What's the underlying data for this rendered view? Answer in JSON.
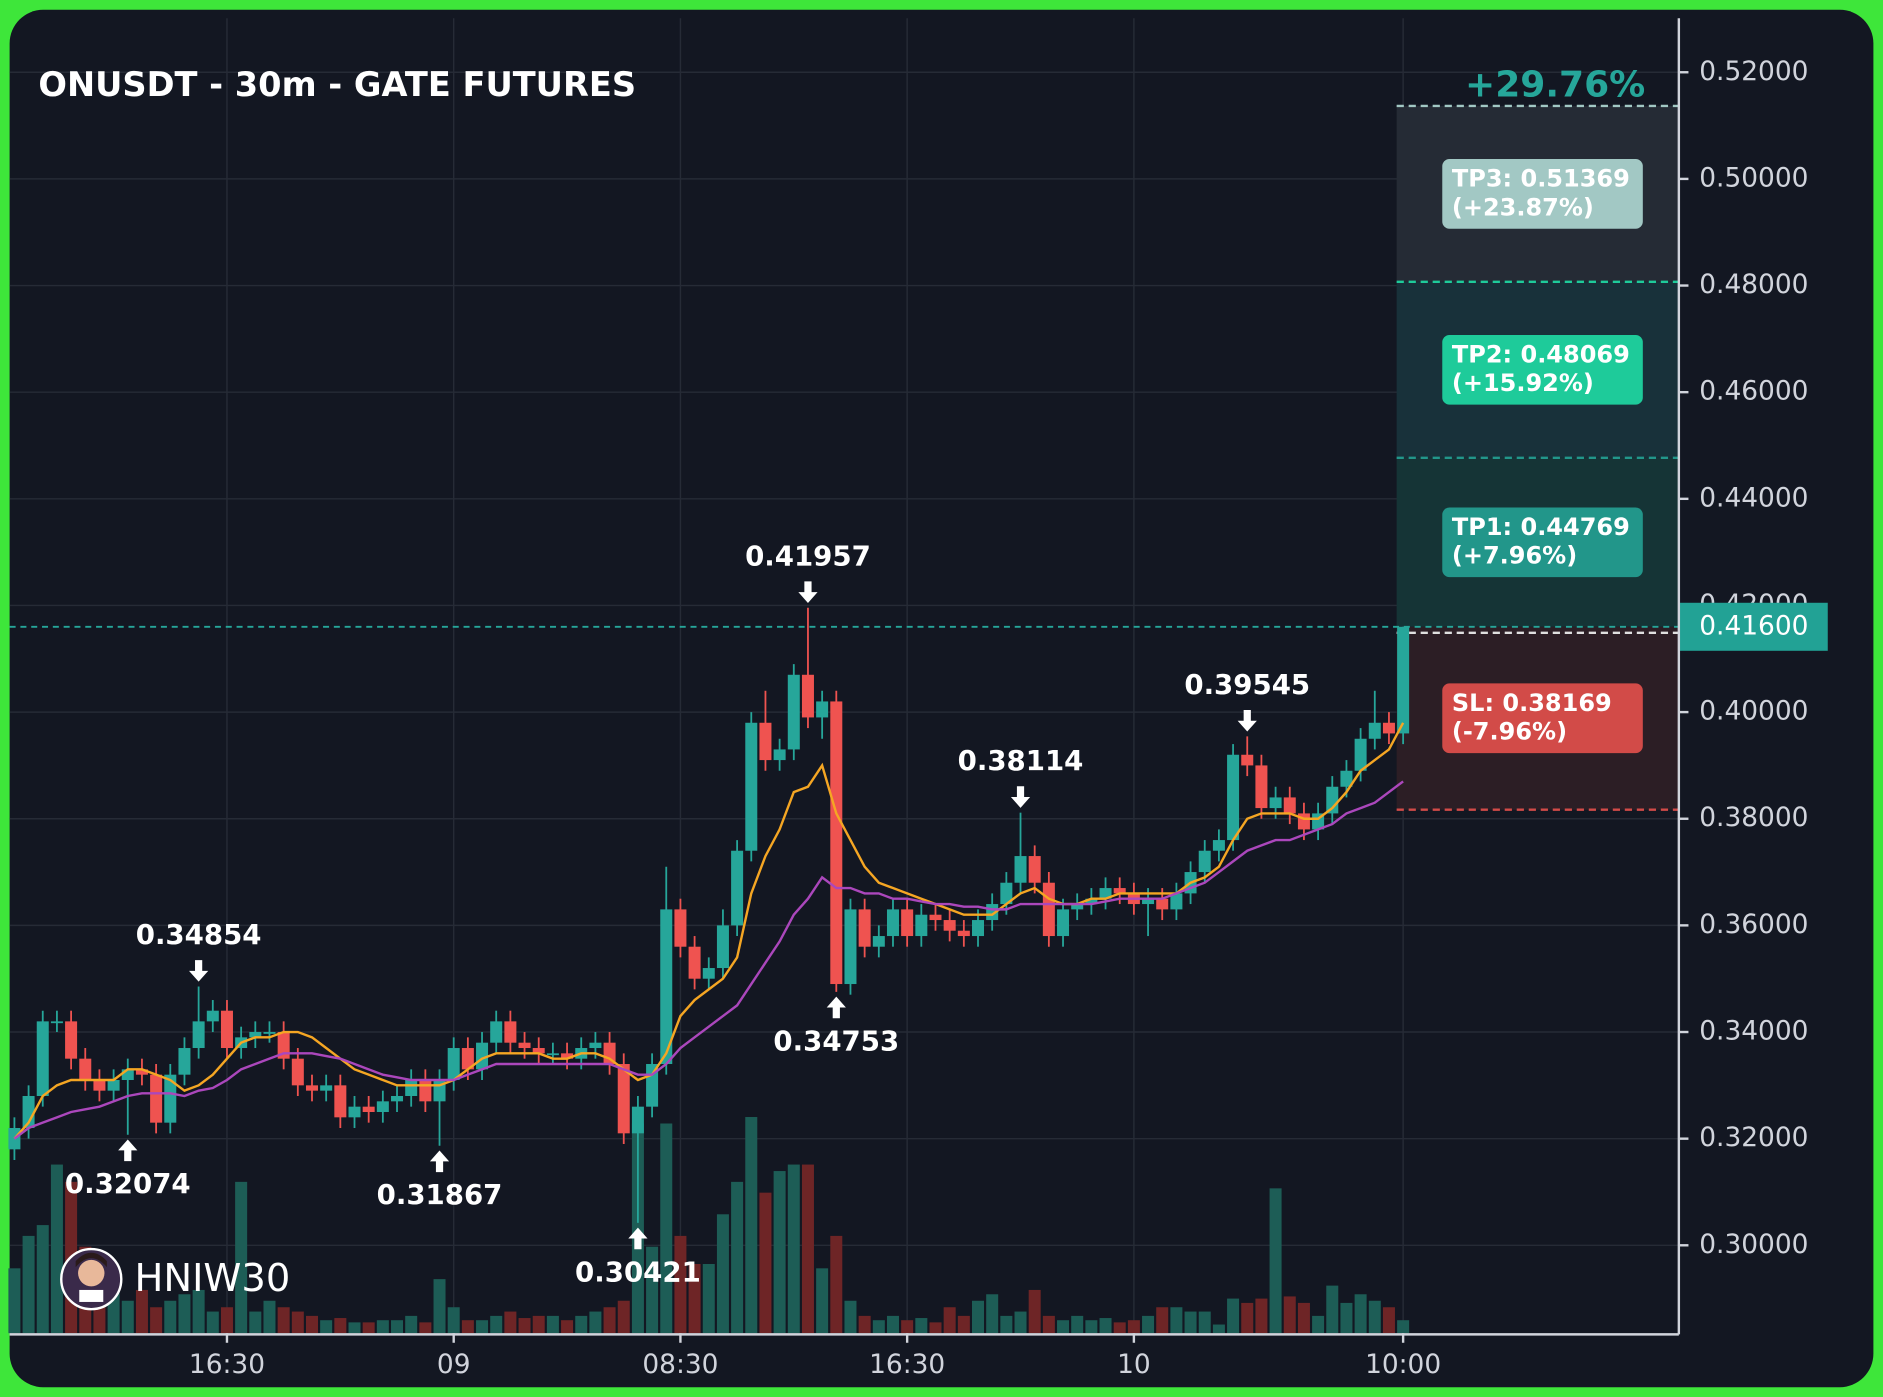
{
  "chart_data": {
    "type": "candlestick",
    "title": "ONUSDT - 30m - GATE FUTURES",
    "watermark": "HNIW30",
    "categories": [
      null,
      null,
      null,
      null,
      null,
      null,
      null,
      null,
      null,
      null,
      null,
      null,
      null,
      null,
      null,
      "16:30",
      null,
      null,
      null,
      null,
      null,
      null,
      null,
      null,
      null,
      null,
      null,
      null,
      null,
      null,
      null,
      "09",
      null,
      null,
      null,
      null,
      null,
      null,
      null,
      null,
      null,
      null,
      null,
      null,
      null,
      null,
      null,
      "08:30",
      null,
      null,
      null,
      null,
      null,
      null,
      null,
      null,
      null,
      null,
      null,
      null,
      null,
      null,
      null,
      "16:30",
      null,
      null,
      null,
      null,
      null,
      null,
      null,
      null,
      null,
      null,
      null,
      null,
      null,
      null,
      null,
      "10",
      null,
      null,
      null,
      null,
      null,
      null,
      null,
      null,
      null,
      null,
      null,
      null,
      null,
      null,
      null,
      null,
      null,
      null,
      "10:00"
    ],
    "ohlc": [
      [
        0.318,
        0.324,
        0.316,
        0.322
      ],
      [
        0.322,
        0.33,
        0.32,
        0.328
      ],
      [
        0.328,
        0.344,
        0.326,
        0.342
      ],
      [
        0.342,
        0.344,
        0.34,
        0.342
      ],
      [
        0.342,
        0.344,
        0.333,
        0.335
      ],
      [
        0.335,
        0.337,
        0.329,
        0.331
      ],
      [
        0.331,
        0.333,
        0.327,
        0.329
      ],
      [
        0.329,
        0.333,
        0.327,
        0.331
      ],
      [
        0.331,
        0.335,
        0.32074,
        0.333
      ],
      [
        0.333,
        0.335,
        0.33,
        0.332
      ],
      [
        0.332,
        0.334,
        0.321,
        0.323
      ],
      [
        0.323,
        0.334,
        0.321,
        0.332
      ],
      [
        0.332,
        0.339,
        0.33,
        0.337
      ],
      [
        0.337,
        0.34854,
        0.335,
        0.342
      ],
      [
        0.342,
        0.346,
        0.34,
        0.344
      ],
      [
        0.344,
        0.346,
        0.335,
        0.337
      ],
      [
        0.337,
        0.341,
        0.335,
        0.339
      ],
      [
        0.339,
        0.342,
        0.337,
        0.34
      ],
      [
        0.34,
        0.342,
        0.338,
        0.34
      ],
      [
        0.34,
        0.342,
        0.333,
        0.335
      ],
      [
        0.335,
        0.337,
        0.328,
        0.33
      ],
      [
        0.33,
        0.332,
        0.327,
        0.329
      ],
      [
        0.329,
        0.332,
        0.327,
        0.33
      ],
      [
        0.33,
        0.332,
        0.322,
        0.324
      ],
      [
        0.324,
        0.328,
        0.322,
        0.326
      ],
      [
        0.326,
        0.328,
        0.323,
        0.325
      ],
      [
        0.325,
        0.329,
        0.323,
        0.327
      ],
      [
        0.327,
        0.33,
        0.325,
        0.328
      ],
      [
        0.328,
        0.333,
        0.326,
        0.331
      ],
      [
        0.331,
        0.333,
        0.325,
        0.327
      ],
      [
        0.327,
        0.333,
        0.31867,
        0.331
      ],
      [
        0.331,
        0.339,
        0.329,
        0.337
      ],
      [
        0.337,
        0.339,
        0.331,
        0.333
      ],
      [
        0.333,
        0.34,
        0.331,
        0.338
      ],
      [
        0.338,
        0.344,
        0.336,
        0.342
      ],
      [
        0.342,
        0.344,
        0.336,
        0.338
      ],
      [
        0.338,
        0.34,
        0.335,
        0.337
      ],
      [
        0.337,
        0.339,
        0.334,
        0.336
      ],
      [
        0.336,
        0.338,
        0.334,
        0.336
      ],
      [
        0.336,
        0.338,
        0.333,
        0.335
      ],
      [
        0.335,
        0.339,
        0.333,
        0.337
      ],
      [
        0.337,
        0.34,
        0.335,
        0.338
      ],
      [
        0.338,
        0.34,
        0.332,
        0.334
      ],
      [
        0.334,
        0.336,
        0.319,
        0.321
      ],
      [
        0.321,
        0.328,
        0.30421,
        0.326
      ],
      [
        0.326,
        0.336,
        0.324,
        0.334
      ],
      [
        0.334,
        0.371,
        0.332,
        0.363
      ],
      [
        0.363,
        0.365,
        0.354,
        0.356
      ],
      [
        0.356,
        0.358,
        0.348,
        0.35
      ],
      [
        0.35,
        0.354,
        0.348,
        0.352
      ],
      [
        0.352,
        0.363,
        0.35,
        0.36
      ],
      [
        0.36,
        0.376,
        0.358,
        0.374
      ],
      [
        0.374,
        0.4,
        0.372,
        0.398
      ],
      [
        0.398,
        0.404,
        0.389,
        0.391
      ],
      [
        0.391,
        0.395,
        0.389,
        0.393
      ],
      [
        0.393,
        0.409,
        0.391,
        0.407
      ],
      [
        0.407,
        0.41957,
        0.397,
        0.399
      ],
      [
        0.399,
        0.404,
        0.395,
        0.402
      ],
      [
        0.402,
        0.404,
        0.34753,
        0.349
      ],
      [
        0.349,
        0.365,
        0.347,
        0.363
      ],
      [
        0.363,
        0.365,
        0.354,
        0.356
      ],
      [
        0.356,
        0.36,
        0.354,
        0.358
      ],
      [
        0.358,
        0.365,
        0.356,
        0.363
      ],
      [
        0.363,
        0.365,
        0.356,
        0.358
      ],
      [
        0.358,
        0.364,
        0.356,
        0.362
      ],
      [
        0.362,
        0.364,
        0.359,
        0.361
      ],
      [
        0.361,
        0.363,
        0.357,
        0.359
      ],
      [
        0.359,
        0.361,
        0.356,
        0.358
      ],
      [
        0.358,
        0.363,
        0.356,
        0.361
      ],
      [
        0.361,
        0.366,
        0.359,
        0.364
      ],
      [
        0.364,
        0.37,
        0.362,
        0.368
      ],
      [
        0.368,
        0.38114,
        0.366,
        0.373
      ],
      [
        0.373,
        0.375,
        0.366,
        0.368
      ],
      [
        0.368,
        0.37,
        0.356,
        0.358
      ],
      [
        0.358,
        0.365,
        0.356,
        0.363
      ],
      [
        0.363,
        0.366,
        0.361,
        0.364
      ],
      [
        0.364,
        0.367,
        0.362,
        0.365
      ],
      [
        0.365,
        0.369,
        0.363,
        0.367
      ],
      [
        0.367,
        0.369,
        0.364,
        0.366
      ],
      [
        0.366,
        0.368,
        0.362,
        0.364
      ],
      [
        0.364,
        0.367,
        0.358,
        0.365
      ],
      [
        0.365,
        0.367,
        0.361,
        0.363
      ],
      [
        0.363,
        0.368,
        0.361,
        0.366
      ],
      [
        0.366,
        0.372,
        0.364,
        0.37
      ],
      [
        0.37,
        0.376,
        0.368,
        0.374
      ],
      [
        0.374,
        0.378,
        0.372,
        0.376
      ],
      [
        0.376,
        0.394,
        0.374,
        0.392
      ],
      [
        0.392,
        0.39545,
        0.388,
        0.39
      ],
      [
        0.39,
        0.392,
        0.38,
        0.382
      ],
      [
        0.382,
        0.386,
        0.38,
        0.384
      ],
      [
        0.384,
        0.386,
        0.379,
        0.381
      ],
      [
        0.381,
        0.383,
        0.376,
        0.378
      ],
      [
        0.378,
        0.383,
        0.376,
        0.381
      ],
      [
        0.381,
        0.388,
        0.379,
        0.386
      ],
      [
        0.386,
        0.391,
        0.384,
        0.389
      ],
      [
        0.389,
        0.397,
        0.387,
        0.395
      ],
      [
        0.395,
        0.404,
        0.393,
        0.398
      ],
      [
        0.398,
        0.4,
        0.394,
        0.396
      ],
      [
        0.396,
        0.416,
        0.394,
        0.416
      ]
    ],
    "volume": [
      30,
      45,
      50,
      78,
      70,
      40,
      25,
      20,
      15,
      20,
      12,
      15,
      18,
      20,
      10,
      12,
      70,
      10,
      15,
      12,
      10,
      8,
      6,
      7,
      5,
      5,
      6,
      6,
      8,
      5,
      25,
      12,
      6,
      6,
      8,
      10,
      7,
      8,
      8,
      6,
      8,
      10,
      12,
      15,
      97,
      40,
      97,
      45,
      32,
      32,
      55,
      70,
      100,
      65,
      75,
      78,
      78,
      30,
      45,
      15,
      8,
      6,
      8,
      6,
      7,
      5,
      12,
      8,
      15,
      18,
      8,
      10,
      20,
      8,
      6,
      8,
      6,
      7,
      5,
      6,
      8,
      12,
      12,
      10,
      10,
      4,
      16,
      14,
      16,
      67,
      17,
      14,
      8,
      22,
      14,
      18,
      15,
      12,
      6
    ],
    "ma": [
      {
        "color": "#f5a623",
        "values": [
          0.32,
          0.323,
          0.328,
          0.33,
          0.331,
          0.331,
          0.331,
          0.331,
          0.333,
          0.333,
          0.332,
          0.331,
          0.329,
          0.33,
          0.332,
          0.335,
          0.338,
          0.339,
          0.339,
          0.34,
          0.34,
          0.339,
          0.337,
          0.335,
          0.333,
          0.332,
          0.331,
          0.33,
          0.33,
          0.33,
          0.33,
          0.331,
          0.333,
          0.335,
          0.336,
          0.336,
          0.336,
          0.336,
          0.335,
          0.335,
          0.336,
          0.336,
          0.335,
          0.333,
          0.331,
          0.332,
          0.336,
          0.343,
          0.346,
          0.348,
          0.35,
          0.354,
          0.366,
          0.373,
          0.378,
          0.385,
          0.386,
          0.39,
          0.381,
          0.376,
          0.371,
          0.368,
          0.367,
          0.366,
          0.365,
          0.364,
          0.363,
          0.362,
          0.362,
          0.362,
          0.364,
          0.366,
          0.367,
          0.365,
          0.364,
          0.364,
          0.365,
          0.365,
          0.366,
          0.366,
          0.366,
          0.366,
          0.366,
          0.368,
          0.369,
          0.371,
          0.376,
          0.38,
          0.381,
          0.381,
          0.381,
          0.38,
          0.38,
          0.382,
          0.385,
          0.389,
          0.391,
          0.393,
          0.398
        ]
      },
      {
        "color": "#ab47bc",
        "values": [
          0.32,
          0.322,
          0.323,
          0.324,
          0.325,
          0.3255,
          0.326,
          0.327,
          0.328,
          0.3285,
          0.3285,
          0.3285,
          0.328,
          0.329,
          0.3295,
          0.331,
          0.333,
          0.334,
          0.335,
          0.336,
          0.336,
          0.336,
          0.3355,
          0.335,
          0.334,
          0.333,
          0.332,
          0.3315,
          0.331,
          0.331,
          0.331,
          0.331,
          0.332,
          0.333,
          0.334,
          0.334,
          0.334,
          0.334,
          0.334,
          0.334,
          0.334,
          0.334,
          0.334,
          0.333,
          0.332,
          0.332,
          0.334,
          0.337,
          0.339,
          0.341,
          0.343,
          0.345,
          0.349,
          0.353,
          0.357,
          0.362,
          0.365,
          0.369,
          0.367,
          0.367,
          0.366,
          0.366,
          0.365,
          0.365,
          0.3645,
          0.364,
          0.364,
          0.3635,
          0.3635,
          0.363,
          0.363,
          0.364,
          0.364,
          0.364,
          0.364,
          0.364,
          0.364,
          0.3645,
          0.365,
          0.365,
          0.365,
          0.365,
          0.366,
          0.367,
          0.368,
          0.37,
          0.372,
          0.374,
          0.375,
          0.376,
          0.376,
          0.377,
          0.378,
          0.379,
          0.381,
          0.382,
          0.383,
          0.385,
          0.387
        ]
      }
    ],
    "ylim": [
      0.28352,
      0.53014
    ],
    "yticks": [
      {
        "value": 0.3,
        "label": "0.30000"
      },
      {
        "value": 0.32,
        "label": "0.32000"
      },
      {
        "value": 0.34,
        "label": "0.34000"
      },
      {
        "value": 0.36,
        "label": "0.36000"
      },
      {
        "value": 0.38,
        "label": "0.38000"
      },
      {
        "value": 0.4,
        "label": "0.40000"
      },
      {
        "value": 0.42,
        "label": "0.42000"
      },
      {
        "value": 0.44,
        "label": "0.44000"
      },
      {
        "value": 0.46,
        "label": "0.46000"
      },
      {
        "value": 0.48,
        "label": "0.48000"
      },
      {
        "value": 0.5,
        "label": "0.50000"
      },
      {
        "value": 0.52,
        "label": "0.52000"
      }
    ],
    "grid": true,
    "colors": {
      "up": "#26a69a",
      "down": "#ef5350",
      "volume_up": "#1d5d56",
      "volume_down": "#6e2526"
    },
    "annotations": [
      "0.34854",
      "0.32074",
      "0.31867",
      "0.30421",
      "0.41957",
      "0.34753",
      "0.38114",
      "0.39545"
    ],
    "last_price": {
      "value": 0.416,
      "label": "0.41600"
    },
    "targets": {
      "total": "+29.76%",
      "levels": [
        {
          "value": 0.51369,
          "label": "TP3: 0.51369",
          "change": "(+23.87%)",
          "color": "#a2c8c4",
          "zone": "#252b35"
        },
        {
          "value": 0.48069,
          "label": "TP2: 0.48069",
          "change": "(+15.92%)",
          "color": "#1ecb9a",
          "zone": "#18313a"
        },
        {
          "value": 0.44769,
          "label": "TP1: 0.44769",
          "change": "(+7.96%)",
          "color": "#22968a",
          "zone": "#153436"
        },
        {
          "value": 0.38169,
          "label": "SL: 0.38169",
          "change": "(-7.96%)",
          "color": "#d24b48",
          "zone": "#2c1e25"
        }
      ]
    }
  }
}
